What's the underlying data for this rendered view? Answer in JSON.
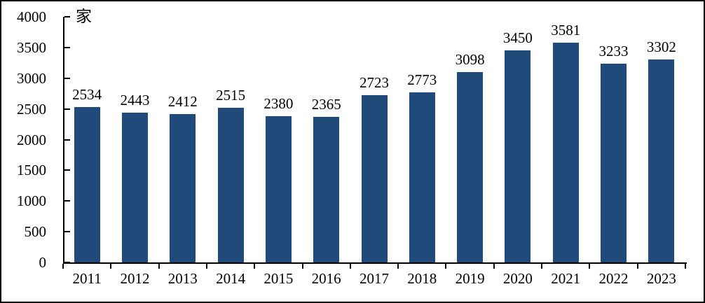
{
  "figure": {
    "unit_label": "家"
  },
  "colors": {
    "bar_fill": "#204A7A",
    "axis": "#000000",
    "text": "#000000",
    "background": "#FFFFFF",
    "border": "#000000"
  },
  "chart_data": {
    "type": "bar",
    "title": "",
    "xlabel": "",
    "ylabel": "家",
    "categories": [
      "2011",
      "2012",
      "2013",
      "2014",
      "2015",
      "2016",
      "2017",
      "2018",
      "2019",
      "2020",
      "2021",
      "2022",
      "2023"
    ],
    "values": [
      2534,
      2443,
      2412,
      2515,
      2380,
      2365,
      2723,
      2773,
      3098,
      3450,
      3581,
      3233,
      3302
    ],
    "show_data_labels": true,
    "ylim": [
      0,
      4000
    ],
    "yticks": [
      0,
      500,
      1000,
      1500,
      2000,
      2500,
      3000,
      3500,
      4000
    ],
    "grid": false,
    "legend": "none",
    "y_tick_direction": "inside",
    "x_tick_direction": "outside"
  }
}
